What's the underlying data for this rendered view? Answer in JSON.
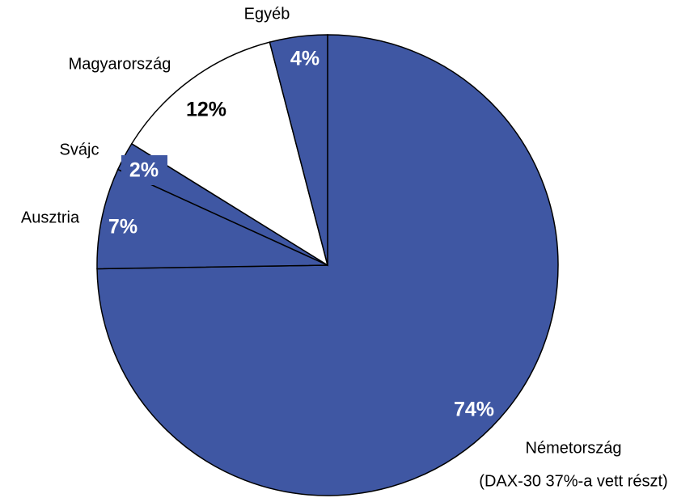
{
  "chart_data": {
    "type": "pie",
    "categories": [
      "Németország",
      "Ausztria",
      "Svájc",
      "Magyarország",
      "Egyéb"
    ],
    "values": [
      74,
      7,
      2,
      12,
      4
    ],
    "value_labels": [
      "74%",
      "7%",
      "2%",
      "12%",
      "4%"
    ],
    "colors": [
      "#3f57a3",
      "#3f57a3",
      "#3f57a3",
      "#ffffff",
      "#3f57a3"
    ],
    "annotation": "(DAX-30 37%-a vett részt)"
  }
}
